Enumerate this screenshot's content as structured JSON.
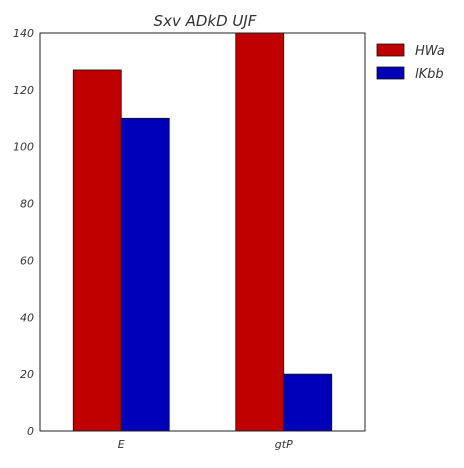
{
  "chart_data": {
    "type": "bar",
    "title": "Sxv ADkD UJF",
    "xlabel": "",
    "ylabel": "",
    "categories": [
      "E",
      "gtP"
    ],
    "series": [
      {
        "name": "HWa",
        "color": "#c00000",
        "values": [
          127,
          140
        ]
      },
      {
        "name": "lKbb",
        "color": "#0000b8",
        "values": [
          110,
          20
        ]
      }
    ],
    "ylim": [
      0,
      140
    ],
    "yticks": [
      0,
      20,
      40,
      60,
      80,
      100,
      120,
      140
    ],
    "grid": false,
    "legend_position": "outside-top-right"
  }
}
